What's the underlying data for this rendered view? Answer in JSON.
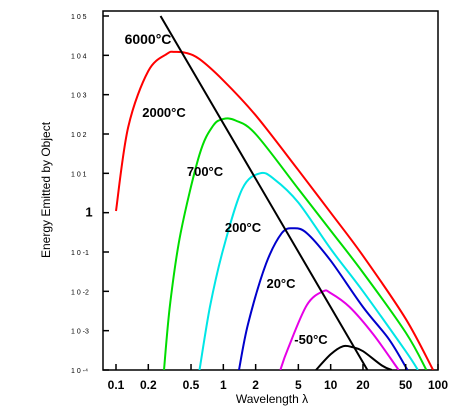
{
  "chart_data": {
    "type": "line",
    "xlabel": "Wavelength λ",
    "ylabel": "Energy Emitted by Object",
    "x_scale": "log",
    "y_scale": "log",
    "xlim": [
      0.1,
      100
    ],
    "ylim": [
      0.0001,
      100000
    ],
    "grid": false,
    "x_ticks": [
      {
        "value": 0.1,
        "label": "0.1"
      },
      {
        "value": 0.2,
        "label": "0.2"
      },
      {
        "value": 0.5,
        "label": "0.5"
      },
      {
        "value": 1,
        "label": "1"
      },
      {
        "value": 2,
        "label": "2"
      },
      {
        "value": 5,
        "label": "5"
      },
      {
        "value": 10,
        "label": "10"
      },
      {
        "value": 20,
        "label": "20"
      },
      {
        "value": 50,
        "label": "50"
      },
      {
        "value": 100,
        "label": "100"
      }
    ],
    "y_ticks": [
      {
        "exp": 5,
        "label": "1 0  5"
      },
      {
        "exp": 4,
        "label": "1 0  4"
      },
      {
        "exp": 3,
        "label": "1 0  3"
      },
      {
        "exp": 2,
        "label": "1 0  2"
      },
      {
        "exp": 1,
        "label": "1 0  1"
      },
      {
        "exp": 0,
        "label": "1"
      },
      {
        "exp": -1,
        "label": "1 0  -1"
      },
      {
        "exp": -2,
        "label": "1 0  -2"
      },
      {
        "exp": -3,
        "label": "1 0  -3"
      },
      {
        "exp": -4,
        "label": "1 0  -⁴"
      }
    ],
    "series": [
      {
        "name": "6000°C",
        "temperature_c": 6000,
        "color": "#ff0000",
        "x": [
          0.1,
          0.13,
          0.2,
          0.3,
          0.35,
          0.45,
          0.6,
          1,
          2,
          5,
          10,
          20,
          50,
          90
        ],
        "y": [
          1.1,
          150,
          4000,
          11000,
          12200,
          11500,
          8000,
          2300,
          300,
          12,
          1,
          0.08,
          0.002,
          0.0001
        ]
      },
      {
        "name": "2000°C",
        "temperature_c": 2000,
        "color": "#00dd00",
        "x": [
          0.28,
          0.32,
          0.4,
          0.6,
          0.8,
          1.0,
          1.3,
          2,
          5,
          10,
          20,
          50,
          78
        ],
        "y": [
          0.0001,
          0.005,
          0.3,
          30,
          160,
          240,
          220,
          100,
          4,
          0.35,
          0.03,
          0.0009,
          0.0001
        ]
      },
      {
        "name": "700°C",
        "temperature_c": 700,
        "color": "#00e6e6",
        "x": [
          0.6,
          0.75,
          1,
          1.5,
          2.2,
          3,
          5,
          10,
          20,
          50,
          65
        ],
        "y": [
          0.0001,
          0.004,
          0.12,
          4,
          10,
          7,
          1.8,
          0.12,
          0.01,
          0.0003,
          0.0001
        ]
      },
      {
        "name": "200°C",
        "temperature_c": 200,
        "color": "#0000cc",
        "x": [
          1.4,
          1.7,
          2.5,
          3.5,
          4.5,
          6,
          10,
          20,
          35,
          52
        ],
        "y": [
          0.0001,
          0.0015,
          0.05,
          0.3,
          0.4,
          0.3,
          0.06,
          0.004,
          0.0006,
          0.0001
        ]
      },
      {
        "name": "20°C",
        "temperature_c": 20,
        "color": "#e600e6",
        "x": [
          3.4,
          4,
          6,
          8.5,
          10,
          15,
          25,
          43
        ],
        "y": [
          0.0001,
          0.00035,
          0.0045,
          0.01,
          0.009,
          0.004,
          0.0008,
          0.0001
        ]
      },
      {
        "name": "-50°C",
        "temperature_c": -50,
        "color": "#000000",
        "x": [
          7.3,
          10,
          13,
          16,
          20,
          30,
          37
        ],
        "y": [
          0.0001,
          0.00025,
          0.0004,
          0.00038,
          0.0003,
          0.00013,
          0.0001
        ]
      }
    ],
    "peak_line": {
      "color": "#000000",
      "x": [
        0.26,
        22
      ],
      "y": [
        100000,
        0.0001
      ]
    }
  }
}
